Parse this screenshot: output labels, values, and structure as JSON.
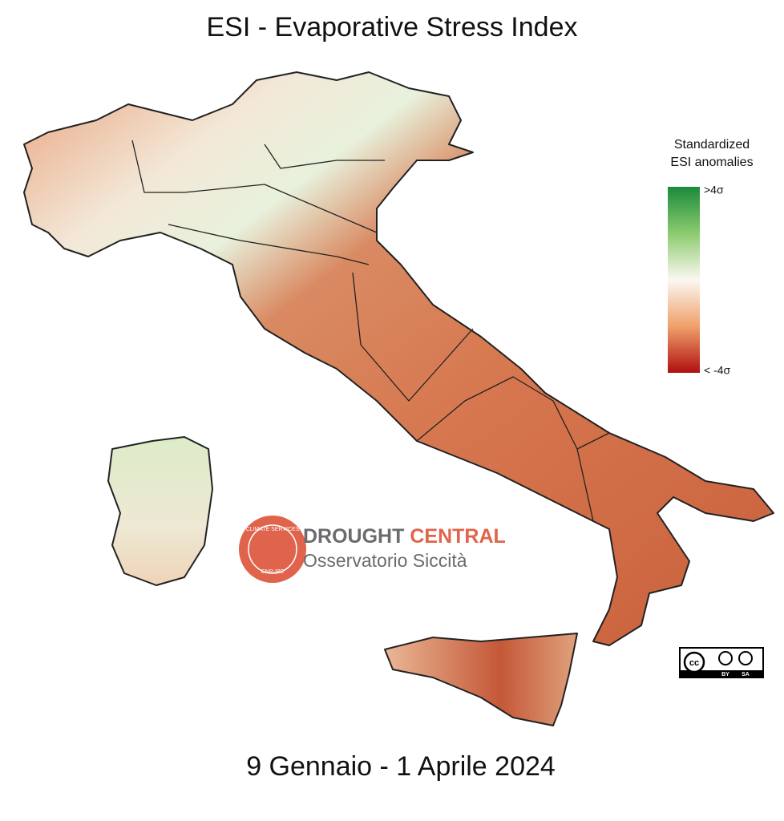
{
  "title": "ESI - Evaporative Stress Index",
  "legend": {
    "title_lines": [
      "Standardized",
      "ESI anomalies"
    ],
    "max_label": ">4σ",
    "min_label": "< -4σ"
  },
  "logo": {
    "ring_top": "CLIMATE SERVICES",
    "ring_bottom": "CNR-IBE",
    "name_dark": "DROUGHT",
    "name_accent": "CENTRAL",
    "subtitle": "Osservatorio Siccità"
  },
  "license": {
    "cc": "cc",
    "by": "BY",
    "sa": "SA"
  },
  "date": "9 Gennaio - 1 Aprile 2024"
}
